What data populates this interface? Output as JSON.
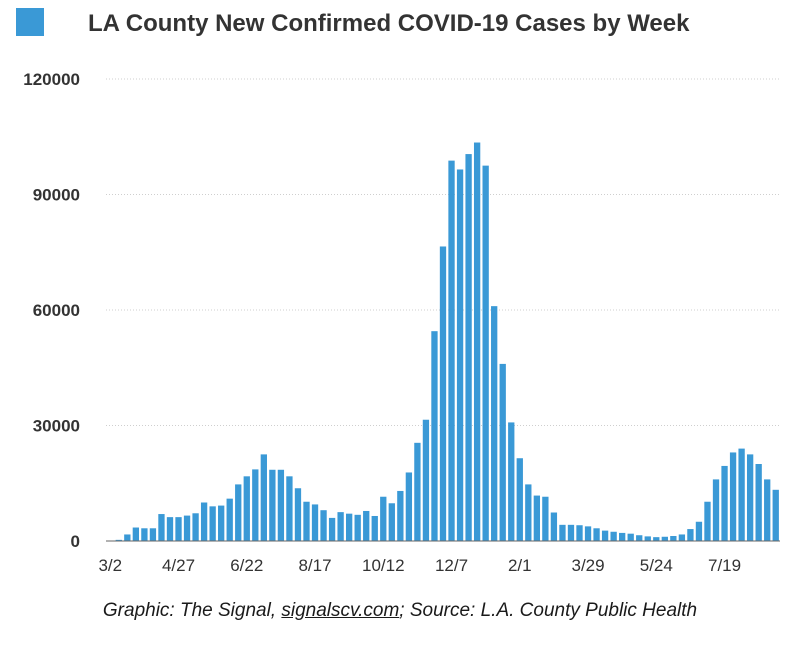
{
  "chart_data": {
    "type": "bar",
    "legend": {
      "label": "LA County New Confirmed COVID-19 Cases by Week",
      "placement": "top-left"
    },
    "bar_color": "#3a99d6",
    "ylim": [
      0,
      120000
    ],
    "y_ticks": [
      0,
      30000,
      60000,
      90000,
      120000
    ],
    "y_tick_labels": [
      "0",
      "30000",
      "60000",
      "90000",
      "120000"
    ],
    "grid": true,
    "x_tick_labels": [
      {
        "label": "3/2",
        "index": 0
      },
      {
        "label": "4/27",
        "index": 8
      },
      {
        "label": "6/22",
        "index": 16
      },
      {
        "label": "8/17",
        "index": 24
      },
      {
        "label": "10/12",
        "index": 32
      },
      {
        "label": "12/7",
        "index": 40
      },
      {
        "label": "2/1",
        "index": 48
      },
      {
        "label": "3/29",
        "index": 56
      },
      {
        "label": "5/24",
        "index": 64
      },
      {
        "label": "7/19",
        "index": 72
      }
    ],
    "values": [
      50,
      300,
      1700,
      3500,
      3300,
      3300,
      7000,
      6200,
      6200,
      6600,
      7200,
      10000,
      9000,
      9200,
      11000,
      14700,
      16800,
      18600,
      22500,
      18500,
      18500,
      16800,
      13700,
      10200,
      9500,
      8000,
      6000,
      7500,
      7100,
      6800,
      7800,
      6500,
      11500,
      9800,
      13000,
      17800,
      25500,
      31500,
      54500,
      76500,
      98800,
      96500,
      100500,
      103500,
      97500,
      61000,
      46000,
      30800,
      21500,
      14700,
      11800,
      11500,
      7400,
      4200,
      4200,
      4100,
      3800,
      3300,
      2700,
      2400,
      2100,
      1900,
      1500,
      1200,
      1000,
      1100,
      1300,
      1700,
      3100,
      5000,
      10200,
      16000,
      19500,
      23000,
      24000,
      22500,
      20000,
      16000,
      13300
    ]
  },
  "caption": {
    "prefix": "Graphic: The Signal, ",
    "link": "signalscv.com",
    "suffix": "; Source: L.A. County Public Health"
  }
}
